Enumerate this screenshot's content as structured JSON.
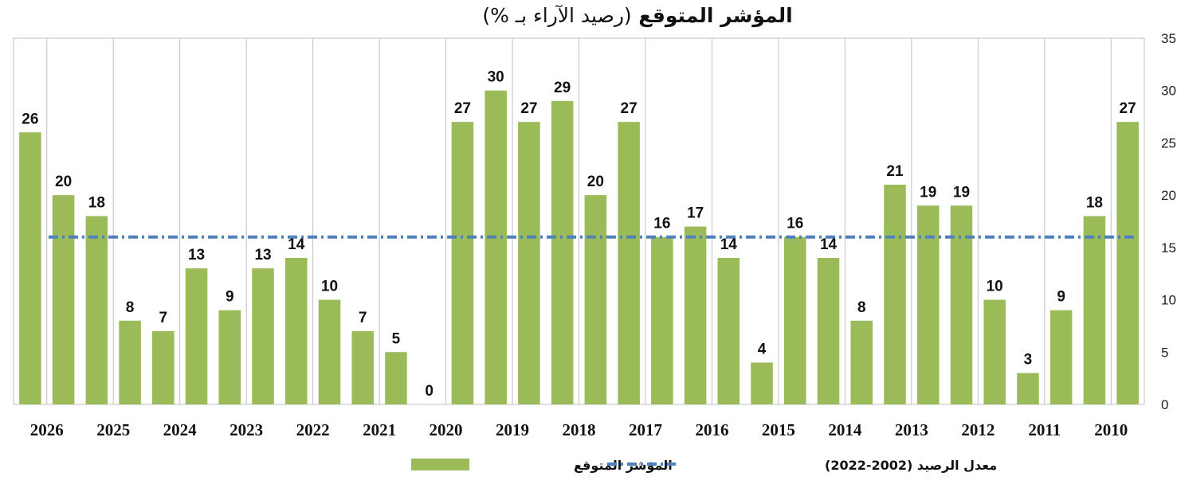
{
  "chart_data": {
    "type": "bar",
    "title": "المؤشر المتوقع",
    "subtitle": "(رصيد الآراء بـ %)",
    "x_direction": "right-to-left",
    "year_ticks": [
      "2010",
      "2011",
      "2012",
      "2013",
      "2014",
      "2015",
      "2016",
      "2017",
      "2018",
      "2019",
      "2020",
      "2021",
      "2022",
      "2023",
      "2024",
      "2025",
      "2026"
    ],
    "ylim": [
      0,
      35
    ],
    "y_ticks": [
      "0",
      "5",
      "10",
      "15",
      "20",
      "25",
      "30",
      "35"
    ],
    "grid": "vertical-only",
    "series": [
      {
        "name": "المؤشر المتوقع",
        "color": "#9bbb59",
        "values": [
          27,
          18,
          9,
          3,
          10,
          19,
          19,
          21,
          8,
          14,
          16,
          4,
          14,
          17,
          16,
          27,
          20,
          29,
          27,
          30,
          27,
          0,
          5,
          7,
          10,
          14,
          13,
          9,
          13,
          7,
          8,
          18,
          20,
          26
        ],
        "labels": [
          "27",
          "18",
          "9",
          "3",
          "10",
          "19",
          "19",
          "21",
          "8",
          "14",
          "16",
          "4",
          "14",
          "17",
          "16",
          "27",
          "20",
          "29",
          "27",
          "30",
          "27",
          "0",
          "5",
          "7",
          "10",
          "14",
          "13",
          "9",
          "13",
          "7",
          "8",
          "18",
          "20",
          "26"
        ]
      },
      {
        "name": "معدل الرصيد (2002-2022)",
        "type": "line",
        "style": "dash-dot",
        "color": "#4f81bd",
        "value": 16
      }
    ],
    "legend": "bottom"
  }
}
